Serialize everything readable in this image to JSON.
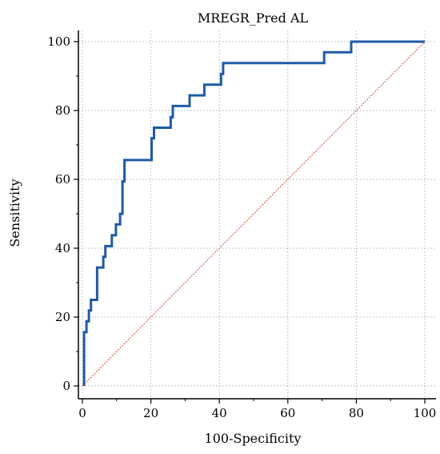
{
  "chart_data": {
    "type": "line",
    "title": "MREGR_Pred AL",
    "xlabel": "100-Specificity",
    "ylabel": "Sensitivity",
    "xlim": [
      0,
      100
    ],
    "ylim": [
      0,
      100
    ],
    "xticks": [
      0,
      20,
      40,
      60,
      80,
      100
    ],
    "yticks": [
      0,
      20,
      40,
      60,
      80,
      100
    ],
    "grid": true,
    "legend": "none",
    "colors": {
      "roc": "#1f5aa6",
      "reference": "#d64a3a",
      "grid": "#b5b5b5",
      "axis": "#000000"
    },
    "series": [
      {
        "values": [
          [
            0.5,
            0
          ],
          [
            0.5,
            15.6
          ],
          [
            1.2,
            15.6
          ],
          [
            1.2,
            18.8
          ],
          [
            1.9,
            18.8
          ],
          [
            1.9,
            21.9
          ],
          [
            2.5,
            21.9
          ],
          [
            2.5,
            25.0
          ],
          [
            4.3,
            25.0
          ],
          [
            4.3,
            34.4
          ],
          [
            6.1,
            34.4
          ],
          [
            6.1,
            37.5
          ],
          [
            6.7,
            37.5
          ],
          [
            6.7,
            40.6
          ],
          [
            8.6,
            40.6
          ],
          [
            8.6,
            43.8
          ],
          [
            9.8,
            43.8
          ],
          [
            9.8,
            46.9
          ],
          [
            11.0,
            46.9
          ],
          [
            11.0,
            50.0
          ],
          [
            11.7,
            50.0
          ],
          [
            11.7,
            59.4
          ],
          [
            12.3,
            59.4
          ],
          [
            12.3,
            65.6
          ],
          [
            20.2,
            65.6
          ],
          [
            20.2,
            71.9
          ],
          [
            20.9,
            71.9
          ],
          [
            20.9,
            75.0
          ],
          [
            25.8,
            75.0
          ],
          [
            25.8,
            78.1
          ],
          [
            26.4,
            78.1
          ],
          [
            26.4,
            81.3
          ],
          [
            31.3,
            81.3
          ],
          [
            31.3,
            84.4
          ],
          [
            35.6,
            84.4
          ],
          [
            35.6,
            87.5
          ],
          [
            40.5,
            87.5
          ],
          [
            40.5,
            90.6
          ],
          [
            41.1,
            90.6
          ],
          [
            41.1,
            93.8
          ],
          [
            70.6,
            93.8
          ],
          [
            70.6,
            96.9
          ],
          [
            78.5,
            96.9
          ],
          [
            78.5,
            100
          ],
          [
            100,
            100
          ]
        ]
      },
      {
        "values": [
          [
            0,
            0
          ],
          [
            100,
            100
          ]
        ]
      }
    ]
  }
}
